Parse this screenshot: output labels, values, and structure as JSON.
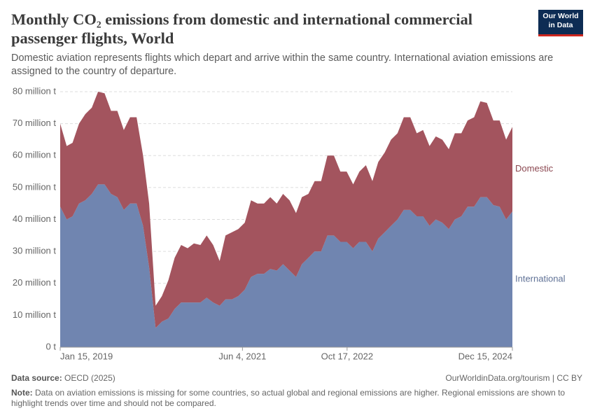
{
  "header": {
    "title": "Monthly CO₂ emissions from domestic and international commercial passenger flights, World",
    "subtitle": "Domestic aviation represents flights which depart and arrive within the same country. International aviation emissions are assigned to the country of departure.",
    "logo": [
      "Our World",
      "in Data"
    ]
  },
  "chart_data": {
    "type": "stacked-area",
    "x": [
      "2019-01-15",
      "2019-02-15",
      "2019-03-15",
      "2019-04-15",
      "2019-05-15",
      "2019-06-15",
      "2019-07-15",
      "2019-08-15",
      "2019-09-15",
      "2019-10-15",
      "2019-11-15",
      "2019-12-15",
      "2020-01-15",
      "2020-02-15",
      "2020-03-15",
      "2020-04-15",
      "2020-05-15",
      "2020-06-15",
      "2020-07-15",
      "2020-08-15",
      "2020-09-15",
      "2020-10-15",
      "2020-11-15",
      "2020-12-15",
      "2021-01-15",
      "2021-02-15",
      "2021-03-15",
      "2021-04-15",
      "2021-05-15",
      "2021-06-15",
      "2021-07-15",
      "2021-08-15",
      "2021-09-15",
      "2021-10-15",
      "2021-11-15",
      "2021-12-15",
      "2022-01-15",
      "2022-02-15",
      "2022-03-15",
      "2022-04-15",
      "2022-05-15",
      "2022-06-15",
      "2022-07-15",
      "2022-08-15",
      "2022-09-15",
      "2022-10-15",
      "2022-11-15",
      "2022-12-15",
      "2023-01-15",
      "2023-02-15",
      "2023-03-15",
      "2023-04-15",
      "2023-05-15",
      "2023-06-15",
      "2023-07-15",
      "2023-08-15",
      "2023-09-15",
      "2023-10-15",
      "2023-11-15",
      "2023-12-15",
      "2024-01-15",
      "2024-02-15",
      "2024-03-15",
      "2024-04-15",
      "2024-05-15",
      "2024-06-15",
      "2024-07-15",
      "2024-08-15",
      "2024-09-15",
      "2024-10-15",
      "2024-11-15",
      "2024-12-15"
    ],
    "series": [
      {
        "name": "International",
        "color": "#7085b0",
        "values": [
          44,
          40,
          41,
          45,
          46,
          48,
          51,
          51,
          48,
          47,
          43,
          45,
          45,
          38,
          25,
          6,
          8,
          9,
          12,
          14,
          14,
          14,
          14,
          15.5,
          14,
          13,
          15,
          15,
          16,
          18,
          22,
          23,
          23,
          24.5,
          24,
          26,
          24,
          22,
          26,
          28,
          30,
          30,
          35,
          35,
          33,
          33,
          31,
          33,
          33,
          30,
          34,
          36,
          38,
          40,
          43,
          43,
          41,
          41,
          38,
          40,
          39,
          37,
          40,
          41,
          44,
          44,
          47,
          47,
          44.5,
          44,
          40,
          42.5
        ]
      },
      {
        "name": "Domestic",
        "color": "#a3545e",
        "values": [
          26,
          23,
          23,
          25,
          27,
          27,
          29,
          28.5,
          26,
          27,
          25,
          27,
          27,
          22,
          20,
          7,
          8,
          12,
          16,
          18,
          17,
          18.5,
          18,
          19.5,
          18,
          14,
          20,
          21,
          21,
          21,
          24,
          22,
          22,
          22.5,
          21,
          22,
          22,
          20,
          21,
          20,
          22,
          22,
          25,
          25,
          22,
          22,
          20,
          22,
          24,
          22,
          24,
          25,
          27,
          27,
          29,
          29,
          26,
          27,
          25,
          26,
          26,
          25,
          27,
          26,
          27,
          28,
          30,
          29.5,
          26.5,
          27,
          25,
          26.5
        ]
      }
    ],
    "xlim": [
      "2019-01-15",
      "2024-12-15"
    ],
    "xticks": [
      {
        "value": "2019-01-15",
        "label": "Jan 15, 2019"
      },
      {
        "value": "2021-06-04",
        "label": "Jun 4, 2021"
      },
      {
        "value": "2022-10-17",
        "label": "Oct 17, 2022"
      },
      {
        "value": "2024-12-15",
        "label": "Dec 15, 2024"
      }
    ],
    "ylim": [
      0,
      80
    ],
    "yticks": [
      {
        "value": 0,
        "label": "0 t"
      },
      {
        "value": 10,
        "label": "10 million t"
      },
      {
        "value": 20,
        "label": "20 million t"
      },
      {
        "value": 30,
        "label": "30 million t"
      },
      {
        "value": 40,
        "label": "40 million t"
      },
      {
        "value": 50,
        "label": "50 million t"
      },
      {
        "value": 60,
        "label": "60 million t"
      },
      {
        "value": 70,
        "label": "70 million t"
      },
      {
        "value": 80,
        "label": "80 million t"
      }
    ],
    "grid": true
  },
  "footer": {
    "source_label": "Data source:",
    "source": "OECD (2025)",
    "url": "OurWorldinData.org/tourism | CC BY",
    "note_label": "Note:",
    "note": "Data on aviation emissions is missing for some countries, so actual global and regional emissions are higher. Regional emissions are shown to highlight trends over time and should not be compared."
  }
}
